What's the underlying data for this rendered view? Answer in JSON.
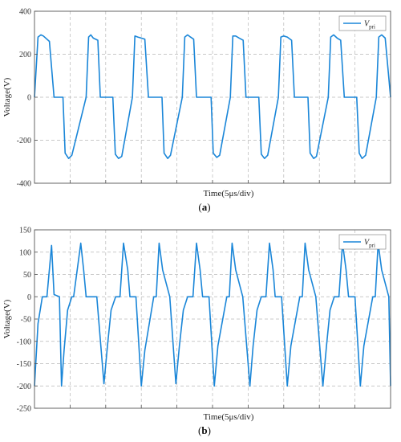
{
  "colors": {
    "trace": "#1a86d8",
    "grid": "#b8b8b8",
    "axis": "#555555"
  },
  "chart_data": [
    {
      "type": "line",
      "caption": "(a)",
      "xlabel": "Time(5μs/div)",
      "ylabel": "Voltage(V)",
      "ylim": [
        -400,
        400
      ],
      "yticks": [
        -400,
        -200,
        0,
        200,
        400
      ],
      "x_divisions": 10,
      "grid": true,
      "legend": {
        "label": "V",
        "subscript": "pri",
        "position": "top-right"
      },
      "series": [
        {
          "x": [
            0.0,
            0.1,
            0.18,
            0.25,
            0.42,
            0.55,
            0.8,
            0.86,
            0.96,
            1.05,
            1.45,
            1.52,
            1.58,
            1.65,
            1.78,
            1.85,
            2.2,
            2.27,
            2.36,
            2.45,
            2.75,
            2.82,
            2.9,
            3.0,
            3.1,
            3.2,
            3.58,
            3.64,
            3.74,
            3.82,
            4.15,
            4.22,
            4.3,
            4.38,
            4.47,
            4.55,
            4.96,
            5.02,
            5.12,
            5.2,
            5.5,
            5.57,
            5.65,
            5.75,
            5.86,
            5.94,
            6.3,
            6.37,
            6.46,
            6.55,
            6.85,
            6.92,
            7.0,
            7.1,
            7.22,
            7.3,
            7.68,
            7.74,
            7.84,
            7.92,
            8.25,
            8.32,
            8.4,
            8.5,
            8.6,
            8.7,
            9.05,
            9.12,
            9.2,
            9.3,
            9.6,
            9.67,
            9.75,
            9.85,
            10.0
          ],
          "y": [
            0,
            280,
            290,
            285,
            260,
            0,
            0,
            -260,
            -285,
            -270,
            0,
            280,
            290,
            275,
            265,
            0,
            0,
            -265,
            -285,
            -275,
            0,
            285,
            280,
            275,
            270,
            0,
            0,
            -260,
            -285,
            -270,
            0,
            280,
            290,
            280,
            270,
            0,
            0,
            -260,
            -280,
            -270,
            0,
            285,
            285,
            275,
            265,
            0,
            0,
            -265,
            -285,
            -270,
            0,
            280,
            285,
            280,
            265,
            0,
            0,
            -260,
            -285,
            -275,
            0,
            280,
            290,
            275,
            265,
            0,
            0,
            -260,
            -285,
            -270,
            0,
            280,
            290,
            275,
            0
          ]
        }
      ]
    },
    {
      "type": "line",
      "caption": "(b)",
      "xlabel": "Time(5μs/div)",
      "ylabel": "Voltage(V)",
      "ylim": [
        -250,
        150
      ],
      "yticks": [
        -250,
        -200,
        -150,
        -100,
        -50,
        0,
        50,
        100,
        150
      ],
      "x_divisions": 10,
      "grid": true,
      "legend": {
        "label": "V",
        "subscript": "pri",
        "position": "top-right"
      },
      "series": [
        {
          "x": [
            0.0,
            0.1,
            0.22,
            0.35,
            0.48,
            0.55,
            0.7,
            0.76,
            0.83,
            0.93,
            1.05,
            1.1,
            1.3,
            1.38,
            1.45,
            1.55,
            1.75,
            1.95,
            2.05,
            2.15,
            2.28,
            2.4,
            2.5,
            2.62,
            2.68,
            2.75,
            2.85,
            3.0,
            3.1,
            3.35,
            3.42,
            3.5,
            3.6,
            3.8,
            3.97,
            4.07,
            4.18,
            4.3,
            4.45,
            4.55,
            4.65,
            4.72,
            4.8,
            4.9,
            5.05,
            5.15,
            5.4,
            5.47,
            5.55,
            5.65,
            5.85,
            6.05,
            6.14,
            6.25,
            6.37,
            6.5,
            6.6,
            6.7,
            6.76,
            6.84,
            6.94,
            7.1,
            7.2,
            7.45,
            7.52,
            7.6,
            7.7,
            7.9,
            8.1,
            8.2,
            8.3,
            8.42,
            8.55,
            8.65,
            8.75,
            8.82,
            8.9,
            9.0,
            9.15,
            9.25,
            9.5,
            9.57,
            9.65,
            9.75,
            9.95,
            10.0
          ],
          "y": [
            -200,
            -60,
            0,
            0,
            115,
            5,
            0,
            -200,
            -120,
            -30,
            0,
            0,
            120,
            60,
            0,
            0,
            0,
            -195,
            -110,
            -30,
            0,
            0,
            120,
            60,
            0,
            0,
            0,
            -200,
            -120,
            0,
            0,
            120,
            60,
            0,
            -195,
            -110,
            -30,
            0,
            0,
            120,
            60,
            0,
            0,
            0,
            -200,
            -110,
            0,
            0,
            120,
            60,
            0,
            -200,
            -110,
            -30,
            0,
            0,
            120,
            60,
            0,
            0,
            0,
            -200,
            -110,
            0,
            0,
            120,
            60,
            0,
            -200,
            -110,
            -30,
            0,
            0,
            120,
            60,
            0,
            0,
            0,
            -200,
            -110,
            0,
            0,
            120,
            60,
            0,
            -200
          ]
        }
      ]
    }
  ]
}
